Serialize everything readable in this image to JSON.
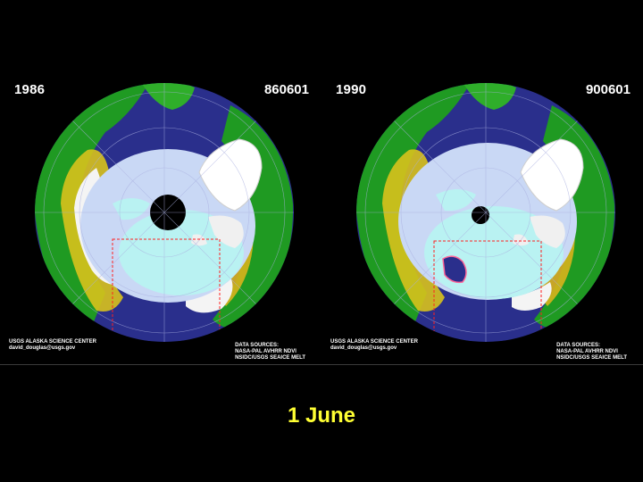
{
  "panels": [
    {
      "year": "1986",
      "code": "860601",
      "credit": [
        "USGS ALASKA SCIENCE CENTER",
        "david_douglas@usgs.gov"
      ],
      "sources": [
        "DATA SOURCES:",
        "NASA-PAL AVHRR NDVI",
        "NSIDC/USGS SEAICE MELT"
      ],
      "pole_gap": "large"
    },
    {
      "year": "1990",
      "code": "900601",
      "credit": [
        "USGS ALASKA SCIENCE CENTER",
        "david_douglas@usgs.gov"
      ],
      "sources": [
        "DATA SOURCES:",
        "NASA-PAL AVHRR NDVI",
        "NSIDC/USGS SEAICE MELT"
      ],
      "pole_gap": "small"
    }
  ],
  "caption": "1 June",
  "colors": {
    "ocean": "#2a2f8c",
    "sea_ice": "#c9d8f5",
    "melt_ice": "#b9f2f2",
    "land_green": "#1f9a22",
    "land_yellow": "#d8c21c",
    "snow": "#ffffff",
    "graticule": "#aab0e0",
    "inset_box": "#ff2020",
    "caption": "#ffff33"
  }
}
